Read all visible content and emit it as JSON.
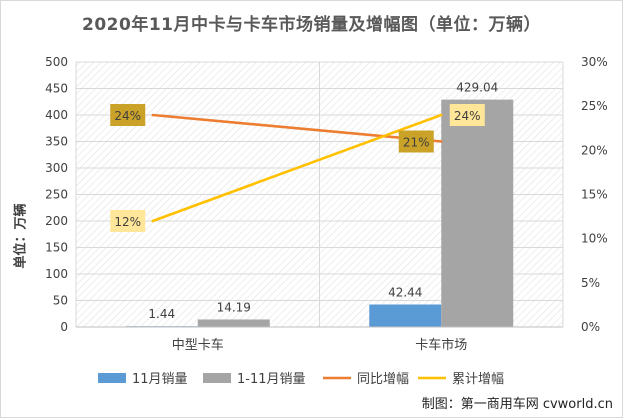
{
  "chart_data": {
    "type": "bar",
    "title": "2020年11月中卡与卡车市场销量及增幅图（单位：万辆）",
    "ylabel": "单位：万辆",
    "categories": [
      "中型卡车",
      "卡车市场"
    ],
    "ylim": [
      0,
      500
    ],
    "y_ticks": [
      "0",
      "50",
      "100",
      "150",
      "200",
      "250",
      "300",
      "350",
      "400",
      "450",
      "500"
    ],
    "y2lim": [
      0,
      30
    ],
    "y2_ticks": [
      "0%",
      "5%",
      "10%",
      "15%",
      "20%",
      "25%",
      "30%"
    ],
    "series": [
      {
        "name": "11月销量",
        "type": "bar",
        "axis": "left",
        "values": [
          1.44,
          42.44
        ],
        "labels": [
          "1.44",
          "42.44"
        ],
        "color": "#5b9bd5"
      },
      {
        "name": "1-11月销量",
        "type": "bar",
        "axis": "left",
        "values": [
          14.19,
          429.04
        ],
        "labels": [
          "14.19",
          "429.04"
        ],
        "color": "#a5a5a5"
      },
      {
        "name": "同比增幅",
        "type": "line",
        "axis": "right",
        "values": [
          24,
          21
        ],
        "labels": [
          "24%",
          "21%"
        ],
        "color": "#ed7d31",
        "label_bg": "#c9a227",
        "label_color": "#404040"
      },
      {
        "name": "累计增幅",
        "type": "line",
        "axis": "right",
        "values": [
          12,
          24
        ],
        "labels": [
          "12%",
          "24%"
        ],
        "color": "#ffc000",
        "label_bg": "#ffe699",
        "label_color": "#404040"
      }
    ],
    "grid": true,
    "legend": "bottom"
  },
  "watermark": "制图：第一商用车网 cvworld.cn"
}
